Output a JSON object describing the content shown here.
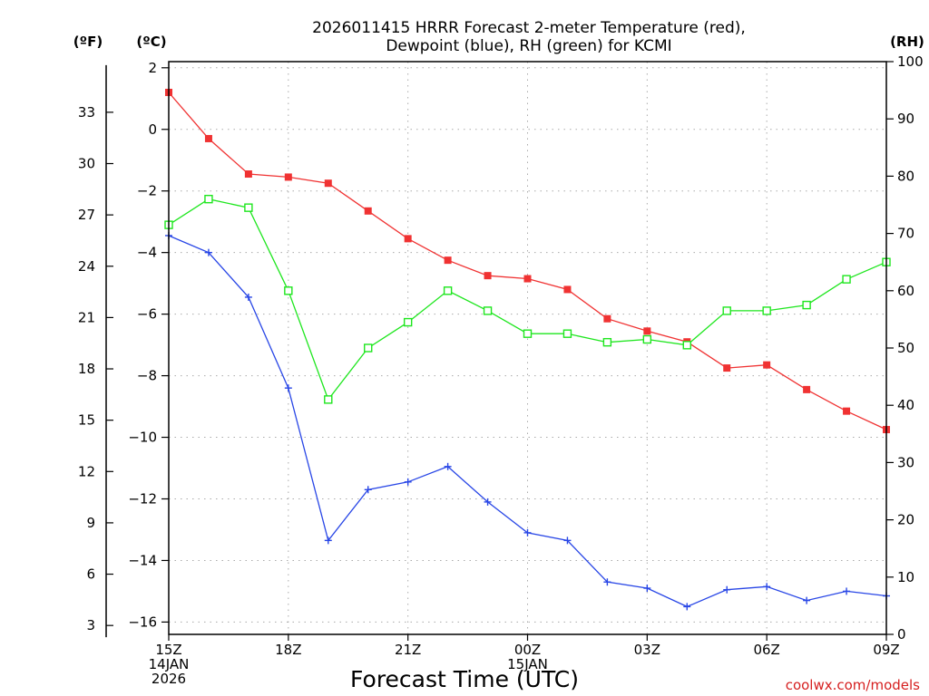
{
  "chart_data": {
    "type": "line",
    "title_lines": [
      "2026011415 HRRR Forecast 2-meter Temperature (red),",
      "Dewpoint (blue), RH (green) for KCMI"
    ],
    "xlabel": "Forecast Time (UTC)",
    "credit": "coolwx.com/models",
    "unit_labels": {
      "fahrenheit": "(ºF)",
      "celsius": "(ºC)",
      "rh": "(RH)"
    },
    "x_hours": [
      0,
      1,
      2,
      3,
      4,
      5,
      6,
      7,
      8,
      9,
      10,
      11,
      12,
      13,
      14,
      15,
      16,
      17,
      18
    ],
    "x_ticks": [
      {
        "hour": 0,
        "lines": [
          "15Z",
          "14JAN",
          "2026"
        ]
      },
      {
        "hour": 3,
        "lines": [
          "18Z"
        ]
      },
      {
        "hour": 6,
        "lines": [
          "21Z"
        ]
      },
      {
        "hour": 9,
        "lines": [
          "00Z",
          "15JAN"
        ]
      },
      {
        "hour": 12,
        "lines": [
          "03Z"
        ]
      },
      {
        "hour": 15,
        "lines": [
          "06Z"
        ]
      },
      {
        "hour": 18,
        "lines": [
          "09Z"
        ]
      }
    ],
    "xlim": [
      0,
      18
    ],
    "celsius_axis": {
      "ylim": [
        -16.4,
        2.2
      ],
      "ticks": [
        2,
        0,
        -2,
        -4,
        -6,
        -8,
        -10,
        -12,
        -14,
        -16
      ]
    },
    "fahrenheit_axis": {
      "ticks": [
        33,
        30,
        27,
        24,
        21,
        18,
        15,
        12,
        9,
        6,
        3
      ]
    },
    "rh_axis": {
      "ylim": [
        0,
        100
      ],
      "ticks": [
        100,
        90,
        80,
        70,
        60,
        50,
        40,
        30,
        20,
        10,
        0
      ]
    },
    "grid": true,
    "series": [
      {
        "name": "Temperature",
        "axis": "celsius",
        "color": "#f03232",
        "marker": "filled-square",
        "values": [
          1.2,
          -0.3,
          -1.45,
          -1.55,
          -1.75,
          -2.65,
          -3.55,
          -4.25,
          -4.75,
          -4.85,
          -5.2,
          -6.15,
          -6.55,
          -6.9,
          -7.75,
          -7.65,
          -8.45,
          -9.15,
          -9.75
        ]
      },
      {
        "name": "Dewpoint",
        "axis": "celsius",
        "color": "#2846e6",
        "marker": "plus",
        "values": [
          -3.45,
          -4.0,
          -5.45,
          -8.4,
          -13.35,
          -11.7,
          -11.45,
          -10.95,
          -12.1,
          -13.1,
          -13.35,
          -14.7,
          -14.9,
          -15.5,
          -14.95,
          -14.85,
          -15.3,
          -15.0,
          -15.15
        ]
      },
      {
        "name": "RH",
        "axis": "rh",
        "color": "#1ee61e",
        "marker": "open-square",
        "values": [
          71.5,
          76,
          74.5,
          60,
          41,
          50,
          54.5,
          60,
          56.5,
          52.5,
          52.5,
          51,
          51.5,
          50.5,
          56.5,
          56.5,
          57.5,
          62,
          65
        ]
      }
    ]
  }
}
